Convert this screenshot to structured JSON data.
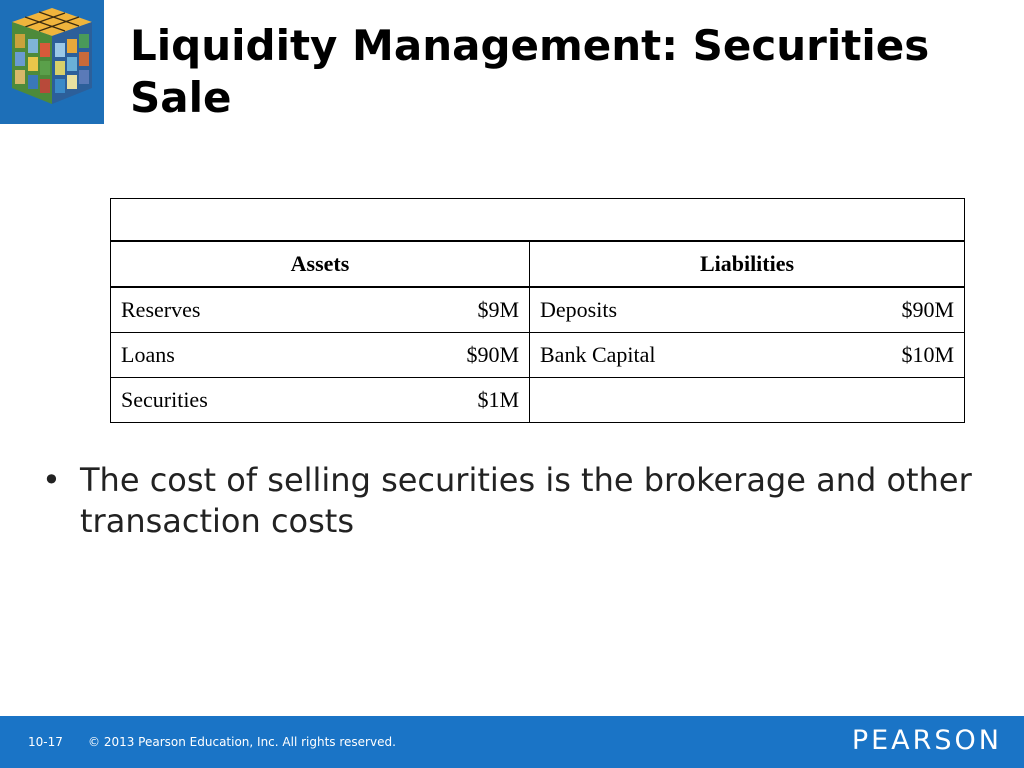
{
  "slide": {
    "title": "Liquidity Management: Securities Sale",
    "logo_icon": "puzzle-cube-icon"
  },
  "balance_sheet": {
    "caption": "",
    "headers": {
      "assets": "Assets",
      "liabilities": "Liabilities"
    },
    "assets": [
      {
        "label": "Reserves",
        "value": "$9M"
      },
      {
        "label": "Loans",
        "value": "$90M"
      },
      {
        "label": "Securities",
        "value": "$1M"
      }
    ],
    "liabilities": [
      {
        "label": "Deposits",
        "value": "$90M"
      },
      {
        "label": "Bank Capital",
        "value": "$10M"
      },
      {
        "label": "",
        "value": ""
      }
    ]
  },
  "bullets": [
    "The cost of selling securities is the brokerage and other transaction costs"
  ],
  "footer": {
    "slide_number": "10-17",
    "copyright": "© 2013 Pearson Education, Inc. All rights reserved.",
    "brand": "PEARSON",
    "background_color": "#1a74c6"
  }
}
